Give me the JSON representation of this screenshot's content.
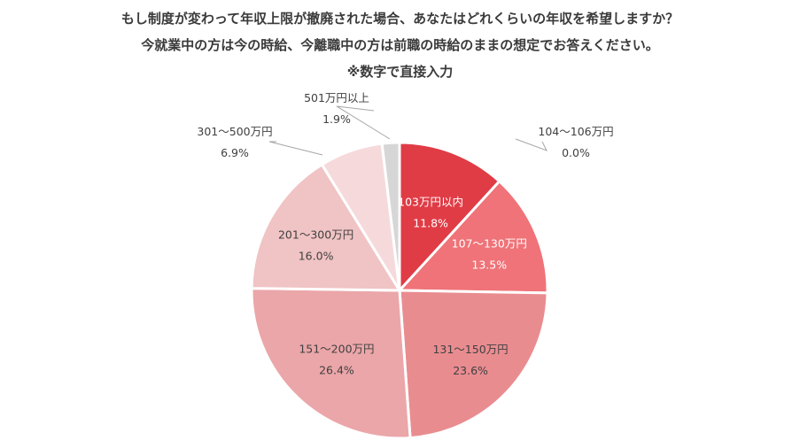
{
  "title_lines": [
    "もし制度が変わって年収上限が撤廃された場合、あなたはどれくらいの年収を希望しますか？",
    "今就業中の方は今の時給、今離職中の方は前職の時給のままの想定でお答えください。",
    "※数字で直接入力"
  ],
  "chart_data": {
    "type": "pie",
    "title": "もし制度が変わって年収上限が撤廃された場合、あなたはどれくらいの年収を希望しますか？",
    "slices": [
      {
        "label": "103万円以内",
        "value": 11.8,
        "value_label": "11.8%",
        "color": "#e03c46",
        "label_style": "inside-light"
      },
      {
        "label": "104～106万円",
        "value": 0.0,
        "value_label": "0.0%",
        "color": "#e8545c",
        "label_style": "outside"
      },
      {
        "label": "107～130万円",
        "value": 13.5,
        "value_label": "13.5%",
        "color": "#ef7378",
        "label_style": "inside-light"
      },
      {
        "label": "131～150万円",
        "value": 23.6,
        "value_label": "23.6%",
        "color": "#e98c90",
        "label_style": "inside-dark"
      },
      {
        "label": "151～200万円",
        "value": 26.4,
        "value_label": "26.4%",
        "color": "#eba6a9",
        "label_style": "inside-dark"
      },
      {
        "label": "201～300万円",
        "value": 16.0,
        "value_label": "16.0%",
        "color": "#f0c3c4",
        "label_style": "inside-dark"
      },
      {
        "label": "301～500万円",
        "value": 6.9,
        "value_label": "6.9%",
        "color": "#f6dadb",
        "label_style": "outside"
      },
      {
        "label": "501万円以上",
        "value": 1.9,
        "value_label": "1.9%",
        "color": "#d6d6d6",
        "label_style": "outside"
      }
    ],
    "start_angle": "12 o'clock",
    "direction": "clockwise",
    "legend": "none"
  }
}
